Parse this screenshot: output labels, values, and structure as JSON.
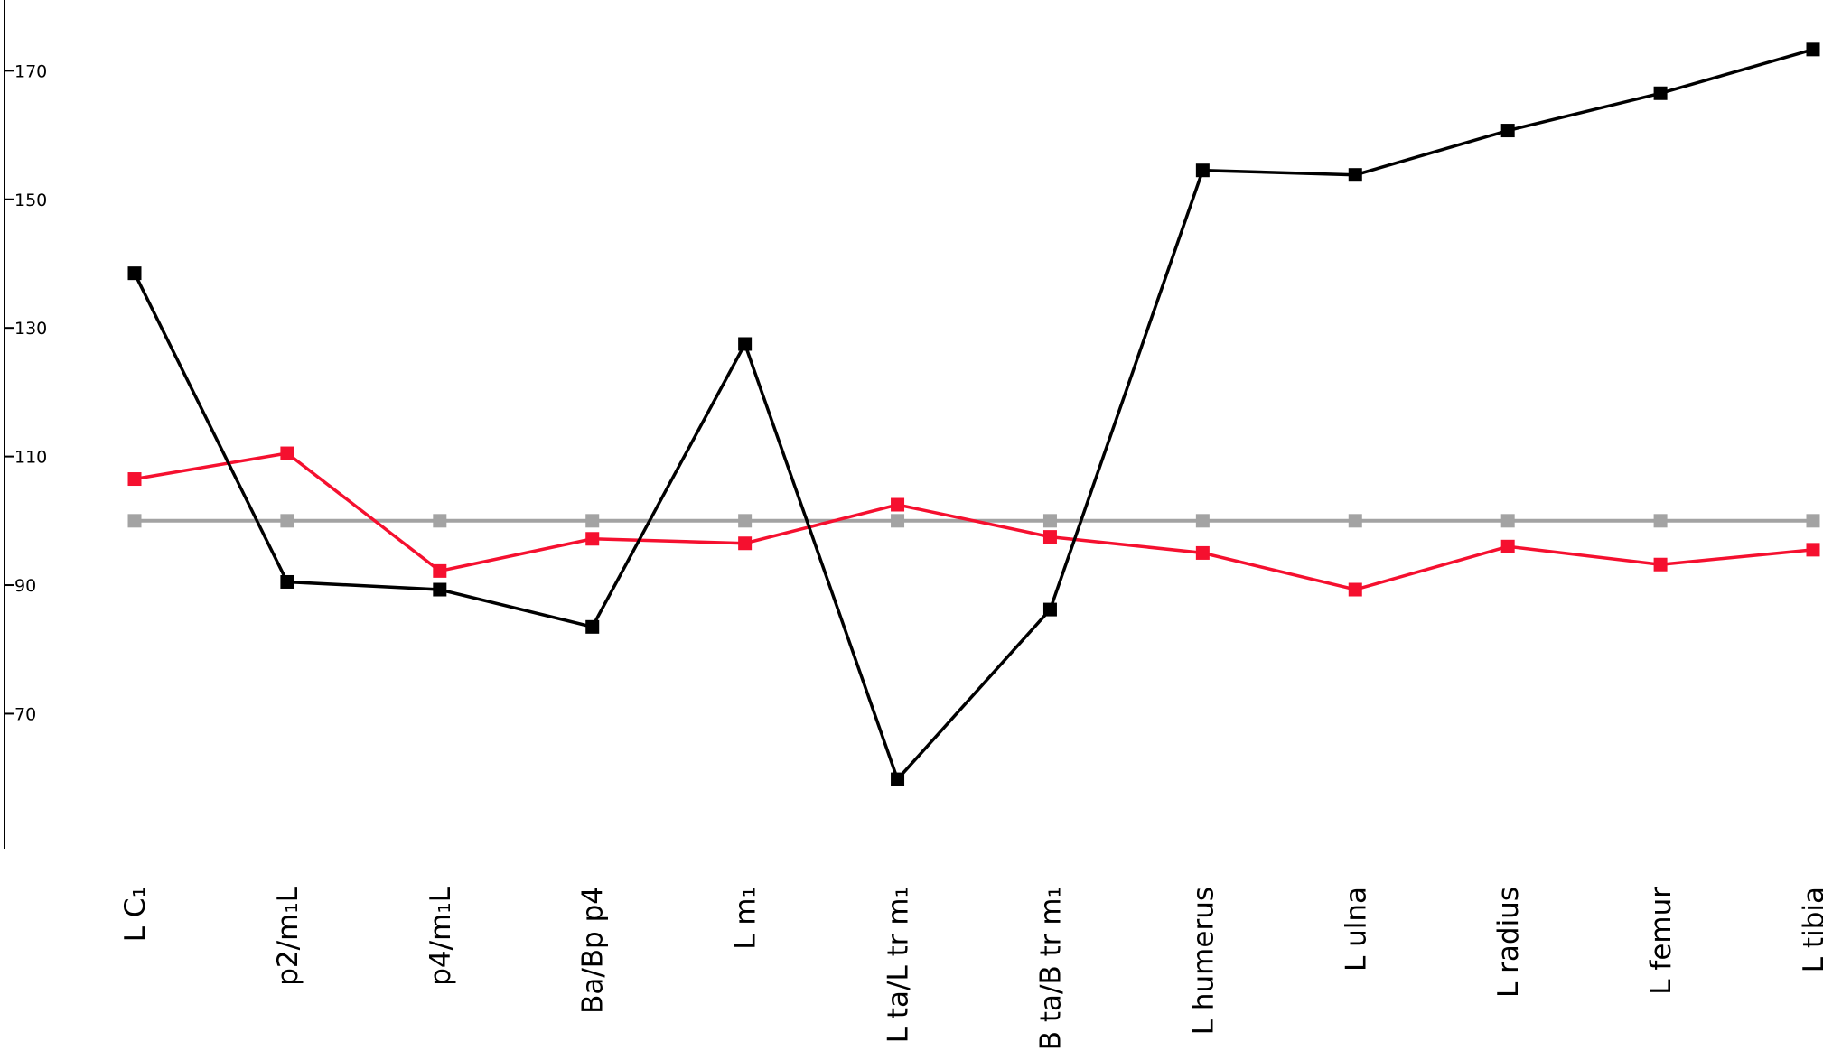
{
  "chart_data": {
    "type": "line",
    "title": "",
    "xlabel": "",
    "ylabel": "",
    "ylim": [
      49,
      181
    ],
    "yticks": [
      70,
      90,
      110,
      130,
      150,
      170
    ],
    "grid": false,
    "categories": [
      "L C₁",
      "p2/m₁L",
      "p4/m₁L",
      "Ba/Bp p4",
      "L m₁",
      "L ta/L tr m₁",
      "B ta/B tr m₁",
      "L humerus",
      "L ulna",
      "L radius",
      "L femur",
      "L tibia"
    ],
    "series": [
      {
        "color": "#000000",
        "marker": "square",
        "values": [
          138.5,
          90.5,
          89.3,
          83.5,
          127.5,
          59.8,
          86.2,
          154.5,
          153.8,
          160.7,
          166.5,
          173.3
        ]
      },
      {
        "color": "#f5102f",
        "marker": "square",
        "values": [
          106.5,
          110.5,
          92.2,
          97.2,
          96.5,
          102.5,
          97.5,
          95.0,
          89.3,
          96.0,
          93.2,
          95.5
        ]
      },
      {
        "color": "#a3a3a3",
        "marker": "square",
        "values": [
          100,
          100,
          100,
          100,
          100,
          100,
          100,
          100,
          100,
          100,
          100,
          100
        ]
      }
    ]
  }
}
